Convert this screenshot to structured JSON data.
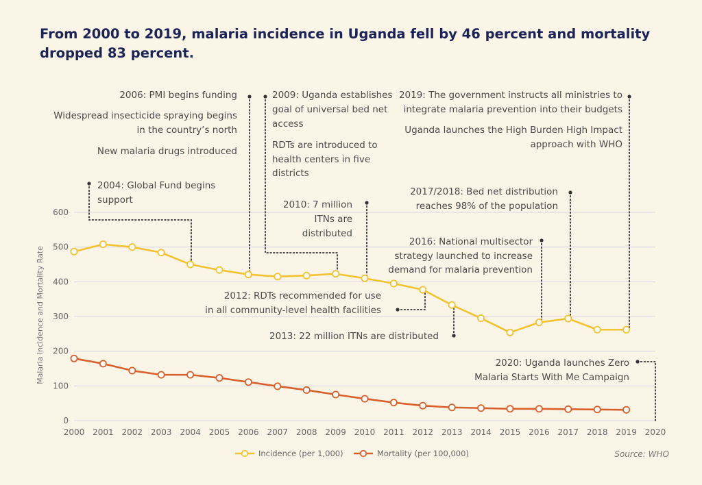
{
  "chart_data": {
    "type": "line",
    "title": "From 2000 to 2019, malaria incidence in Uganda fell by 46 percent and mortality dropped 83 percent.",
    "ylabel": "Malaria Incidence and Mortality Rate",
    "xlabel": "",
    "xlim": [
      2000,
      2020
    ],
    "ylim": [
      0,
      600
    ],
    "x_ticks": [
      "2000",
      "2001",
      "2002",
      "2003",
      "2004",
      "2005",
      "2006",
      "2007",
      "2008",
      "2009",
      "2010",
      "2011",
      "2012",
      "2013",
      "2014",
      "2015",
      "2016",
      "2017",
      "2018",
      "2019",
      "2020"
    ],
    "y_ticks": [
      "0",
      "100",
      "200",
      "300",
      "400",
      "500",
      "600"
    ],
    "grid": true,
    "legend_position": "bottom-center",
    "x": [
      2000,
      2001,
      2002,
      2003,
      2004,
      2005,
      2006,
      2007,
      2008,
      2009,
      2010,
      2011,
      2012,
      2013,
      2014,
      2015,
      2016,
      2017,
      2018,
      2019
    ],
    "series": [
      {
        "name": "Incidence (per 1,000)",
        "color": "#f2c230",
        "values": [
          487,
          508,
          500,
          484,
          450,
          434,
          421,
          415,
          418,
          423,
          410,
          395,
          377,
          333,
          295,
          254,
          283,
          294,
          262,
          262
        ]
      },
      {
        "name": "Mortality (per 100,000)",
        "color": "#d9602a",
        "values": [
          179,
          164,
          144,
          132,
          132,
          123,
          111,
          99,
          88,
          75,
          63,
          52,
          43,
          38,
          36,
          34,
          34,
          33,
          32,
          31
        ]
      }
    ],
    "annotations": [
      {
        "id": "a2006",
        "lines": [
          "2006: PMI begins funding",
          "Widespread insecticide spraying begins",
          "in the country’s north",
          "New malaria drugs introduced"
        ]
      },
      {
        "id": "a2009",
        "lines": [
          "2009: Uganda establishes",
          "goal of universal bed net",
          "access",
          "RDTs are introduced to",
          "health centers in five",
          "districts"
        ]
      },
      {
        "id": "a2019",
        "lines": [
          "2019: The government instructs all ministries to",
          "integrate malaria prevention into their budgets",
          "Uganda launches the High Burden High Impact",
          "approach with WHO"
        ]
      },
      {
        "id": "a2004",
        "lines": [
          "2004: Global Fund begins",
          "support"
        ]
      },
      {
        "id": "a2010",
        "lines": [
          "2010: 7 million",
          "ITNs are",
          "distributed"
        ]
      },
      {
        "id": "a2017",
        "lines": [
          "2017/2018: Bed net distribution",
          "reaches 98% of the population"
        ]
      },
      {
        "id": "a2016",
        "lines": [
          "2016: National multisector",
          "strategy launched to increase",
          "demand for malaria prevention"
        ]
      },
      {
        "id": "a2012",
        "lines": [
          "2012: RDTs recommended for use",
          "in all community-level health facilities"
        ]
      },
      {
        "id": "a2013",
        "lines": [
          "2013: 22 million ITNs are distributed"
        ]
      },
      {
        "id": "a2020",
        "lines": [
          "2020: Uganda launches Zero",
          "Malaria Starts With Me Campaign"
        ]
      }
    ],
    "source": "Source: WHO"
  }
}
